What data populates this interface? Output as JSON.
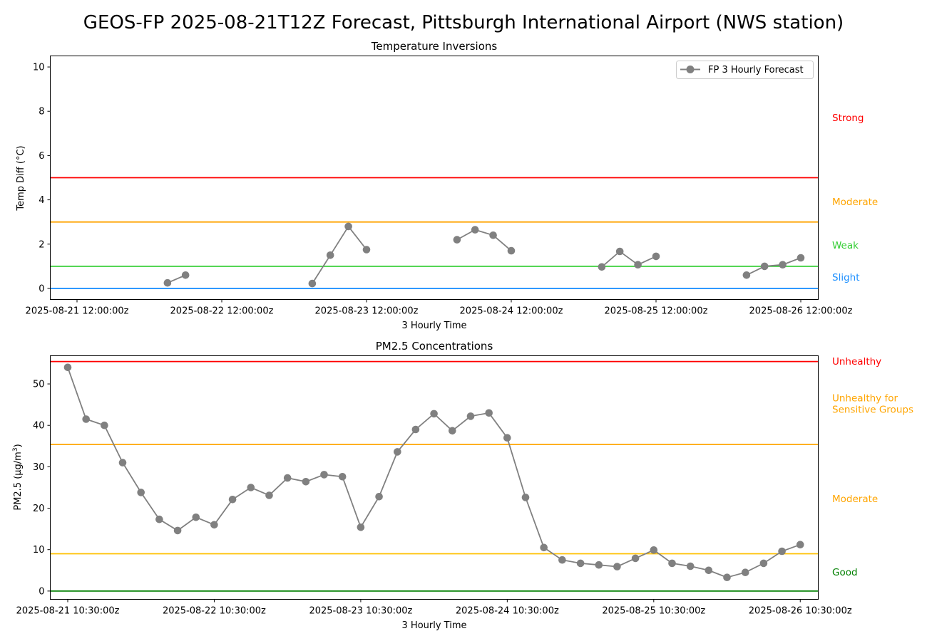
{
  "figure": {
    "title": "GEOS-FP 2025-08-21T12Z Forecast, Pittsburgh International Airport (NWS station)"
  },
  "chart_data": [
    {
      "type": "line",
      "title": "Temperature Inversions",
      "xlabel": "3 Hourly Time",
      "ylabel": "Temp Diff (°C)",
      "ylim": [
        -0.5,
        10.5
      ],
      "yticks": [
        0,
        2,
        4,
        6,
        8,
        10
      ],
      "xticks": [
        "2025-08-21 12:00:00z",
        "2025-08-22 12:00:00z",
        "2025-08-23 12:00:00z",
        "2025-08-24 12:00:00z",
        "2025-08-25 12:00:00z",
        "2025-08-26 12:00:00z"
      ],
      "legend": {
        "position": "top-right",
        "entries": [
          "FP 3 Hourly Forecast"
        ]
      },
      "grid": false,
      "series": [
        {
          "name": "FP 3 Hourly Forecast",
          "color": "#808080",
          "x_hours_note": "",
          "points": [
            {
              "t": "2025-08-22 03:00:00z",
              "y": 0.25
            },
            {
              "t": "2025-08-22 06:00:00z",
              "y": 0.6
            },
            null,
            {
              "t": "2025-08-23 03:00:00z",
              "y": 0.22
            },
            {
              "t": "2025-08-23 06:00:00z",
              "y": 1.5
            },
            {
              "t": "2025-08-23 09:00:00z",
              "y": 2.8
            },
            {
              "t": "2025-08-23 12:00:00z",
              "y": 1.75
            },
            null,
            {
              "t": "2025-08-24 03:00:00z",
              "y": 2.2
            },
            {
              "t": "2025-08-24 06:00:00z",
              "y": 2.65
            },
            {
              "t": "2025-08-24 09:00:00z",
              "y": 2.4
            },
            {
              "t": "2025-08-24 12:00:00z",
              "y": 1.7
            },
            null,
            {
              "t": "2025-08-25 03:00:00z",
              "y": 0.97
            },
            {
              "t": "2025-08-25 06:00:00z",
              "y": 1.67
            },
            {
              "t": "2025-08-25 09:00:00z",
              "y": 1.07
            },
            {
              "t": "2025-08-25 12:00:00z",
              "y": 1.45
            },
            null,
            {
              "t": "2025-08-26 03:00:00z",
              "y": 0.6
            },
            {
              "t": "2025-08-26 06:00:00z",
              "y": 1.0
            },
            {
              "t": "2025-08-26 09:00:00z",
              "y": 1.07
            },
            {
              "t": "2025-08-26 12:00:00z",
              "y": 1.38
            }
          ]
        }
      ],
      "thresholds": [
        {
          "value": 0,
          "color": "#1e90ff"
        },
        {
          "value": 1,
          "color": "#32cd32"
        },
        {
          "value": 3,
          "color": "#ffa500"
        },
        {
          "value": 5,
          "color": "#ff0000"
        }
      ],
      "categories": [
        {
          "label": "Strong",
          "y": 7.7,
          "color": "#ff0000"
        },
        {
          "label": "Moderate",
          "y": 3.9,
          "color": "#ffa500"
        },
        {
          "label": "Weak",
          "y": 1.95,
          "color": "#32cd32"
        },
        {
          "label": "Slight",
          "y": 0.5,
          "color": "#1e90ff"
        }
      ]
    },
    {
      "type": "line",
      "title": "PM2.5 Concentrations",
      "xlabel": "3 Hourly Time",
      "ylabel": "PM2.5 (µg/m³)",
      "ylabel_main": "PM2.5 (µg/m",
      "ylabel_sup": "3",
      "ylabel_end": ")",
      "ylim": [
        -2,
        56.8
      ],
      "yticks": [
        0,
        10,
        20,
        30,
        40,
        50
      ],
      "xticks": [
        "2025-08-21 10:30:00z",
        "2025-08-22 10:30:00z",
        "2025-08-23 10:30:00z",
        "2025-08-24 10:30:00z",
        "2025-08-25 10:30:00z",
        "2025-08-26 10:30:00z"
      ],
      "grid": false,
      "series": [
        {
          "color": "#808080",
          "points": [
            {
              "t": "2025-08-21 10:30:00z",
              "y": 54.0
            },
            {
              "t": "2025-08-21 13:30:00z",
              "y": 41.5
            },
            {
              "t": "2025-08-21 16:30:00z",
              "y": 40.0
            },
            {
              "t": "2025-08-21 19:30:00z",
              "y": 31.0
            },
            {
              "t": "2025-08-21 22:30:00z",
              "y": 23.8
            },
            {
              "t": "2025-08-22 01:30:00z",
              "y": 17.3
            },
            {
              "t": "2025-08-22 04:30:00z",
              "y": 14.6
            },
            {
              "t": "2025-08-22 07:30:00z",
              "y": 17.8
            },
            {
              "t": "2025-08-22 10:30:00z",
              "y": 16.0
            },
            {
              "t": "2025-08-22 13:30:00z",
              "y": 22.1
            },
            {
              "t": "2025-08-22 16:30:00z",
              "y": 25.0
            },
            {
              "t": "2025-08-22 19:30:00z",
              "y": 23.1
            },
            {
              "t": "2025-08-22 22:30:00z",
              "y": 27.3
            },
            {
              "t": "2025-08-23 01:30:00z",
              "y": 26.4
            },
            {
              "t": "2025-08-23 04:30:00z",
              "y": 28.1
            },
            {
              "t": "2025-08-23 07:30:00z",
              "y": 27.6
            },
            {
              "t": "2025-08-23 10:30:00z",
              "y": 15.4
            },
            {
              "t": "2025-08-23 13:30:00z",
              "y": 22.8
            },
            {
              "t": "2025-08-23 16:30:00z",
              "y": 33.6
            },
            {
              "t": "2025-08-23 19:30:00z",
              "y": 39.0
            },
            {
              "t": "2025-08-23 22:30:00z",
              "y": 42.8
            },
            {
              "t": "2025-08-24 01:30:00z",
              "y": 38.7
            },
            {
              "t": "2025-08-24 04:30:00z",
              "y": 42.2
            },
            {
              "t": "2025-08-24 07:30:00z",
              "y": 43.0
            },
            {
              "t": "2025-08-24 10:30:00z",
              "y": 37.0
            },
            {
              "t": "2025-08-24 13:30:00z",
              "y": 22.6
            },
            {
              "t": "2025-08-24 16:30:00z",
              "y": 10.5
            },
            {
              "t": "2025-08-24 19:30:00z",
              "y": 7.5
            },
            {
              "t": "2025-08-24 22:30:00z",
              "y": 6.7
            },
            {
              "t": "2025-08-25 01:30:00z",
              "y": 6.3
            },
            {
              "t": "2025-08-25 04:30:00z",
              "y": 5.9
            },
            {
              "t": "2025-08-25 07:30:00z",
              "y": 7.9
            },
            {
              "t": "2025-08-25 10:30:00z",
              "y": 9.9
            },
            {
              "t": "2025-08-25 13:30:00z",
              "y": 6.7
            },
            {
              "t": "2025-08-25 16:30:00z",
              "y": 6.0
            },
            {
              "t": "2025-08-25 19:30:00z",
              "y": 5.0
            },
            {
              "t": "2025-08-25 22:30:00z",
              "y": 3.3
            },
            {
              "t": "2025-08-26 01:30:00z",
              "y": 4.5
            },
            {
              "t": "2025-08-26 04:30:00z",
              "y": 6.7
            },
            {
              "t": "2025-08-26 07:30:00z",
              "y": 9.6
            },
            {
              "t": "2025-08-26 10:30:00z",
              "y": 11.2
            }
          ]
        }
      ],
      "thresholds": [
        {
          "value": 0,
          "color": "#008000"
        },
        {
          "value": 9,
          "color": "#ffc000"
        },
        {
          "value": 35.4,
          "color": "#ffa500"
        },
        {
          "value": 55.4,
          "color": "#ff0000"
        }
      ],
      "categories": [
        {
          "label": "Unhealthy",
          "y": 55.4,
          "color": "#ff0000"
        },
        {
          "label": "Unhealthy for\nSensitive Groups",
          "y": 45.2,
          "color": "#ffa500"
        },
        {
          "label": "Moderate",
          "y": 22.2,
          "color": "#ffa500"
        },
        {
          "label": "Good",
          "y": 4.5,
          "color": "#008000"
        }
      ]
    }
  ]
}
